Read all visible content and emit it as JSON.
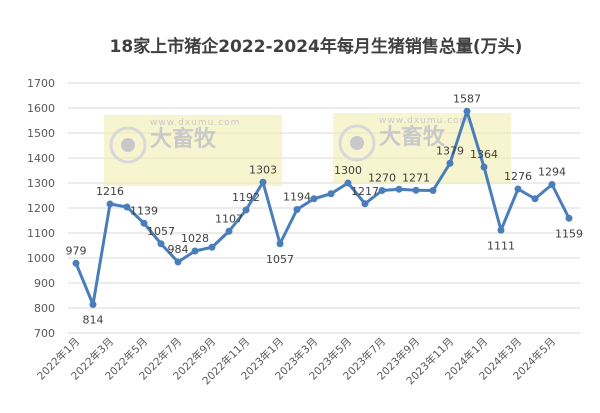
{
  "chart_data": {
    "type": "line",
    "title": "18家上市猪企2022-2024年每月生猪销售总量(万头)",
    "xlabel": "",
    "ylabel": "",
    "ylim": [
      700,
      1700
    ],
    "yticks": [
      700,
      800,
      900,
      1000,
      1100,
      1200,
      1300,
      1400,
      1500,
      1600,
      1700
    ],
    "grid": "horizontal",
    "legend": "none",
    "line_color": "#4a7ebb",
    "x": [
      "2022年1月",
      "2022年2月",
      "2022年3月",
      "2022年4月",
      "2022年5月",
      "2022年6月",
      "2022年7月",
      "2022年8月",
      "2022年9月",
      "2022年10月",
      "2022年11月",
      "2022年12月",
      "2023年1月",
      "2023年2月",
      "2023年3月",
      "2023年4月",
      "2023年5月",
      "2023年6月",
      "2023年7月",
      "2023年8月",
      "2023年9月",
      "2023年10月",
      "2023年11月",
      "2023年12月",
      "2024年1月",
      "2024年2月",
      "2024年3月",
      "2024年4月",
      "2024年5月",
      "2024年6月"
    ],
    "xtick_labels": [
      "2022年1月",
      "2022年3月",
      "2022年5月",
      "2022年7月",
      "2022年9月",
      "2022年11月",
      "2023年1月",
      "2023年3月",
      "2023年5月",
      "2023年7月",
      "2023年9月",
      "2023年11月",
      "2024年1月",
      "2024年3月",
      "2024年5月"
    ],
    "values": [
      979,
      814,
      1216,
      1204,
      1139,
      1057,
      984,
      1028,
      1043,
      1107,
      1192,
      1303,
      1057,
      1194,
      1237,
      1257,
      1300,
      1217,
      1270,
      1275,
      1271,
      1270,
      1379,
      1587,
      1364,
      1111,
      1276,
      1237,
      1294,
      1159
    ],
    "data_labels": [
      {
        "index": 0,
        "text": "979",
        "position": "above"
      },
      {
        "index": 1,
        "text": "814",
        "position": "below"
      },
      {
        "index": 2,
        "text": "1216",
        "position": "above"
      },
      {
        "index": 4,
        "text": "1139",
        "position": "above"
      },
      {
        "index": 5,
        "text": "1057",
        "position": "above"
      },
      {
        "index": 6,
        "text": "984",
        "position": "above"
      },
      {
        "index": 7,
        "text": "1028",
        "position": "above"
      },
      {
        "index": 9,
        "text": "1107",
        "position": "above"
      },
      {
        "index": 10,
        "text": "1192",
        "position": "above"
      },
      {
        "index": 11,
        "text": "1303",
        "position": "above"
      },
      {
        "index": 12,
        "text": "1057",
        "position": "below"
      },
      {
        "index": 13,
        "text": "1194",
        "position": "above"
      },
      {
        "index": 16,
        "text": "1300",
        "position": "above"
      },
      {
        "index": 17,
        "text": "1217",
        "position": "above"
      },
      {
        "index": 18,
        "text": "1270",
        "position": "above"
      },
      {
        "index": 20,
        "text": "1271",
        "position": "above"
      },
      {
        "index": 22,
        "text": "1379",
        "position": "above"
      },
      {
        "index": 23,
        "text": "1587",
        "position": "above"
      },
      {
        "index": 24,
        "text": "1364",
        "position": "above"
      },
      {
        "index": 25,
        "text": "1111",
        "position": "below"
      },
      {
        "index": 26,
        "text": "1276",
        "position": "above"
      },
      {
        "index": 28,
        "text": "1294",
        "position": "above"
      },
      {
        "index": 29,
        "text": "1159",
        "position": "below"
      }
    ]
  },
  "watermark": {
    "brand": "大畜牧",
    "url": "www.dxumu.com",
    "color": "#f2eeb0"
  }
}
